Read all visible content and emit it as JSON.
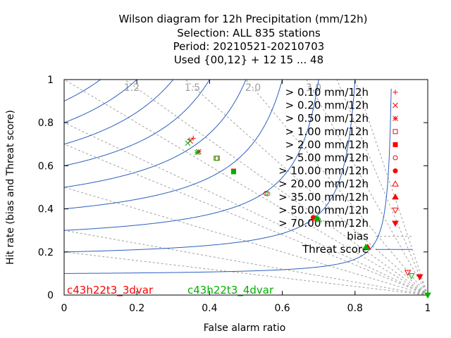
{
  "chart_data": {
    "type": "scatter",
    "title": [
      "Wilson diagram  for 12h Precipitation (mm/12h)",
      "Selection: ALL    835 stations",
      "Period: 20210521-20210703",
      "Used {00,12} + 12 15 ... 48"
    ],
    "xlabel": "False alarm ratio",
    "ylabel": "Hit rate (bias and Threat score)",
    "xlim": [
      0,
      1
    ],
    "ylim": [
      0,
      1
    ],
    "x_ticks": [
      "0",
      "0.2",
      "0.4",
      "0.6",
      "0.8",
      "1"
    ],
    "y_ticks": [
      "0",
      "0.2",
      "0.4",
      "0.6",
      "0.8",
      "1"
    ],
    "bias_lines": [
      {
        "value": 0.2
      },
      {
        "value": 0.3
      },
      {
        "value": 0.5
      },
      {
        "value": 0.7
      },
      {
        "value": 0.8
      },
      {
        "value": 1.0
      },
      {
        "value": 1.2
      },
      {
        "value": 1.5
      },
      {
        "value": 2.0
      },
      {
        "value": 3.0
      },
      {
        "value": 4.0
      },
      {
        "value": 5.0
      }
    ],
    "bias_labels": [
      {
        "text": "1.2",
        "value": 1.2
      },
      {
        "text": "1.5",
        "value": 1.5
      },
      {
        "text": "2.0",
        "value": 2.0
      },
      {
        "text": "3.0",
        "value": 3.0
      }
    ],
    "threat_score_lines": [
      0.1,
      0.2,
      0.3,
      0.4,
      0.5,
      0.6,
      0.7,
      0.8,
      0.9
    ],
    "legend": {
      "placement": "top-right",
      "thresholds": [
        {
          "label": "> 0.10 mm/12h",
          "marker": "plus"
        },
        {
          "label": "> 0.20 mm/12h",
          "marker": "cross"
        },
        {
          "label": "> 0.50 mm/12h",
          "marker": "star"
        },
        {
          "label": "> 1.00 mm/12h",
          "marker": "square-open"
        },
        {
          "label": "> 2.00 mm/12h",
          "marker": "square-filled"
        },
        {
          "label": "> 5.00 mm/12h",
          "marker": "circle-open"
        },
        {
          "label": "> 10.00 mm/12h",
          "marker": "circle-filled"
        },
        {
          "label": "> 20.00 mm/12h",
          "marker": "triangle-up-open"
        },
        {
          "label": "> 35.00 mm/12h",
          "marker": "triangle-up-filled"
        },
        {
          "label": "> 50.00 mm/12h",
          "marker": "triangle-down-open"
        },
        {
          "label": "> 70.00 mm/12h",
          "marker": "triangle-down-filled"
        }
      ],
      "bias_label": "bias",
      "threat_label": "Threat score"
    },
    "series": [
      {
        "name": "c43h22t3_3dvar",
        "color": "#ff0000",
        "points": [
          {
            "x": 0.355,
            "y": 0.728
          },
          {
            "x": 0.347,
            "y": 0.715
          },
          {
            "x": 0.37,
            "y": 0.665
          },
          {
            "x": 0.421,
            "y": 0.635
          },
          {
            "x": 0.466,
            "y": 0.575
          },
          {
            "x": 0.555,
            "y": 0.472
          },
          {
            "x": 0.685,
            "y": 0.36
          },
          {
            "x": 0.69,
            "y": 0.355
          },
          {
            "x": 0.835,
            "y": 0.222
          },
          {
            "x": 0.945,
            "y": 0.105
          },
          {
            "x": 0.978,
            "y": 0.085
          }
        ]
      },
      {
        "name": "c43h22t3_4dvar",
        "color": "#00b000",
        "points": [
          {
            "x": 0.345,
            "y": 0.72
          },
          {
            "x": 0.34,
            "y": 0.705
          },
          {
            "x": 0.366,
            "y": 0.662
          },
          {
            "x": 0.418,
            "y": 0.635
          },
          {
            "x": 0.466,
            "y": 0.572
          },
          {
            "x": 0.56,
            "y": 0.47
          },
          {
            "x": 0.695,
            "y": 0.355
          },
          {
            "x": 0.7,
            "y": 0.35
          },
          {
            "x": 0.83,
            "y": 0.223
          },
          {
            "x": 0.955,
            "y": 0.09
          },
          {
            "x": 1.0,
            "y": 0.0
          }
        ]
      }
    ]
  },
  "colors": {
    "threat_line": "#2b5fbf",
    "bias_line": "#a0a0a0",
    "axis": "#000000"
  }
}
